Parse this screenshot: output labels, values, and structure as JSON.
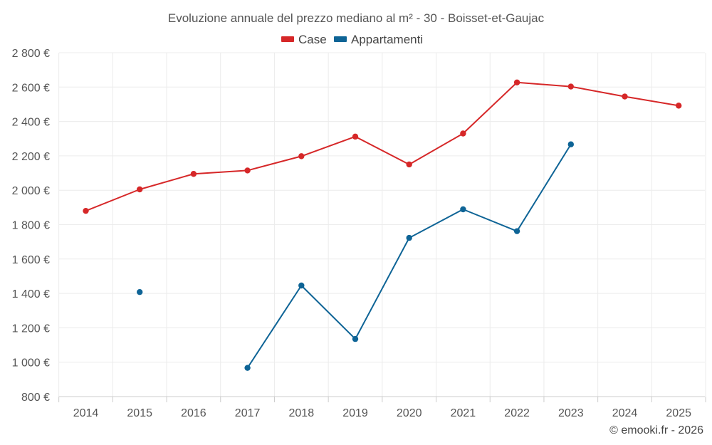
{
  "chart_data": {
    "type": "line",
    "title": "Evoluzione annuale del prezzo mediano al m² - 30 - Boisset-et-Gaujac",
    "x": [
      "2014",
      "2015",
      "2016",
      "2017",
      "2018",
      "2019",
      "2020",
      "2021",
      "2022",
      "2023",
      "2024",
      "2025"
    ],
    "ylim": [
      800,
      2800
    ],
    "yticks": [
      800,
      1000,
      1200,
      1400,
      1600,
      1800,
      2000,
      2200,
      2400,
      2600,
      2800
    ],
    "ytick_labels": [
      "800 €",
      "1 000 €",
      "1 200 €",
      "1 400 €",
      "1 600 €",
      "1 800 €",
      "2 000 €",
      "2 200 €",
      "2 400 €",
      "2 600 €",
      "2 800 €"
    ],
    "xlabel": "",
    "ylabel": "",
    "grid": true,
    "legend_position": "top-center",
    "series": [
      {
        "name": "Case",
        "color": "#d62728",
        "values": [
          1880,
          2005,
          2095,
          2115,
          2198,
          2312,
          2150,
          2330,
          2627,
          2603,
          2545,
          2492
        ]
      },
      {
        "name": "Appartamenti",
        "color": "#0e6496",
        "values": [
          null,
          1408,
          null,
          967,
          1446,
          1135,
          1723,
          1889,
          1762,
          2267,
          null,
          null
        ]
      }
    ]
  },
  "credit": "© emooki.fr - 2026"
}
